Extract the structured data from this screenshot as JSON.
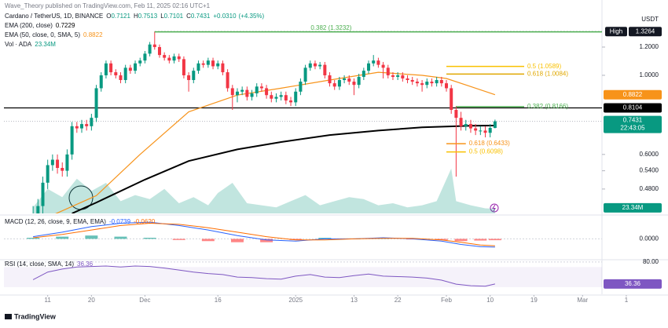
{
  "publisher": "Wave_Theory published on TradingView.com, Feb 11, 2025 02:16 UTC+1",
  "footer": "TradingView",
  "chart_data": [
    {
      "type": "candlestick",
      "title": "Cardano / TetherUS, 1D, BINANCE",
      "quote": [
        {
          "label": "O",
          "value": 0.7121
        },
        {
          "label": "H",
          "value": 0.7513
        },
        {
          "label": "L",
          "value": 0.7101
        },
        {
          "label": "C",
          "value": 0.7431
        }
      ],
      "change": {
        "value": 0.031,
        "label": "+0.0310"
      },
      "change_pct": {
        "value": 4.35,
        "label": "(+4.35%)"
      },
      "unit_label": "USDT",
      "log_scale": true,
      "xlim": [
        -6,
        117
      ],
      "xticks": [
        {
          "value": 3,
          "label": "11"
        },
        {
          "value": 12,
          "label": "20"
        },
        {
          "value": 23,
          "label": "Dec"
        },
        {
          "value": 38,
          "label": "16"
        },
        {
          "value": 54,
          "label": "2025"
        },
        {
          "value": 66,
          "label": "13"
        },
        {
          "value": 75,
          "label": "22"
        },
        {
          "value": 85,
          "label": "Feb"
        },
        {
          "value": 94,
          "label": "10"
        },
        {
          "value": 103,
          "label": "19"
        },
        {
          "value": 113,
          "label": "Mar"
        },
        {
          "value": 122,
          "label": "1"
        }
      ],
      "ylim": [
        0.41,
        1.411
      ],
      "yticks": [
        {
          "value": 1.2,
          "label": "1.2000"
        },
        {
          "value": 1,
          "label": "1.0000"
        },
        {
          "value": 0.6,
          "label": "0.6000"
        },
        {
          "value": 0.54,
          "label": "0.5400"
        },
        {
          "value": 0.48,
          "label": "0.4800"
        }
      ],
      "up_color": "#089981",
      "down_color": "#f23645",
      "open": [
        0.39,
        0.41,
        0.43,
        0.5,
        0.56,
        0.58,
        0.55,
        0.54,
        0.6,
        0.72,
        0.71,
        0.73,
        0.72,
        0.76,
        0.92,
        1.0,
        1.08,
        1.02,
        1.0,
        0.97,
        1.05,
        1.03,
        1.08,
        1.1,
        1.15,
        1.22,
        1.2,
        1.14,
        1.12,
        1.1,
        1.13,
        1.11,
        1.0,
        0.97,
        1.03,
        1.08,
        1.07,
        1.1,
        1.06,
        1.08,
        1.02,
        0.92,
        0.88,
        0.9,
        0.91,
        0.87,
        0.89,
        0.93,
        0.92,
        0.88,
        0.86,
        0.87,
        0.88,
        0.85,
        0.84,
        0.9,
        0.96,
        1.05,
        1.08,
        1.06,
        1.07,
        1.0,
        0.95,
        0.93,
        0.97,
        0.98,
        0.96,
        0.94,
        0.99,
        1.03,
        1.08,
        1.1,
        1.07,
        1.05,
        1.0,
        0.99,
        1.0,
        0.98,
        0.97,
        0.96,
        0.95,
        0.94,
        0.96,
        0.95,
        0.97,
        0.95,
        0.92,
        0.8,
        0.76,
        0.72,
        0.73,
        0.71,
        0.7,
        0.7,
        0.69,
        0.7121
      ],
      "high": [
        0.43,
        0.45,
        0.52,
        0.58,
        0.6,
        0.6,
        0.57,
        0.62,
        0.74,
        0.74,
        0.75,
        0.75,
        0.78,
        0.94,
        1.02,
        1.1,
        1.1,
        1.04,
        1.02,
        1.07,
        1.07,
        1.1,
        1.12,
        1.17,
        1.24,
        1.3264,
        1.22,
        1.16,
        1.14,
        1.15,
        1.15,
        1.13,
        1.02,
        1.05,
        1.1,
        1.1,
        1.12,
        1.12,
        1.1,
        1.1,
        1.04,
        0.94,
        0.92,
        0.93,
        0.93,
        0.91,
        0.95,
        0.95,
        0.94,
        0.9,
        0.89,
        0.9,
        0.9,
        0.87,
        0.92,
        0.98,
        1.07,
        1.1,
        1.1,
        1.09,
        1.09,
        1.02,
        0.97,
        0.99,
        1.0,
        1.0,
        0.98,
        1.01,
        1.05,
        1.1,
        1.14,
        1.12,
        1.09,
        1.07,
        1.02,
        1.02,
        1.02,
        1.0,
        0.99,
        0.98,
        0.97,
        0.98,
        0.98,
        0.99,
        0.99,
        0.97,
        0.94,
        0.82,
        0.79,
        0.75,
        0.75,
        0.73,
        0.72,
        0.72,
        0.73,
        0.7513
      ],
      "low": [
        0.37,
        0.39,
        0.41,
        0.48,
        0.54,
        0.53,
        0.52,
        0.52,
        0.58,
        0.69,
        0.69,
        0.7,
        0.7,
        0.74,
        0.9,
        0.98,
        1.0,
        0.98,
        0.95,
        0.95,
        1.01,
        1.01,
        1.06,
        1.08,
        1.13,
        1.18,
        1.12,
        1.1,
        1.08,
        1.08,
        1.09,
        0.98,
        0.9,
        0.95,
        1.01,
        1.05,
        1.05,
        1.04,
        1.04,
        1.0,
        0.9,
        0.8,
        0.84,
        0.88,
        0.85,
        0.85,
        0.87,
        0.9,
        0.86,
        0.84,
        0.84,
        0.85,
        0.83,
        0.82,
        0.82,
        0.88,
        0.94,
        1.03,
        1.04,
        1.04,
        0.98,
        0.93,
        0.91,
        0.91,
        0.95,
        0.94,
        0.88,
        0.92,
        0.97,
        1.01,
        1.06,
        1.05,
        0.98,
        0.98,
        0.97,
        0.97,
        0.96,
        0.95,
        0.94,
        0.93,
        0.9,
        0.92,
        0.93,
        0.93,
        0.93,
        0.9,
        0.78,
        0.52,
        0.7,
        0.7,
        0.69,
        0.68,
        0.68,
        0.67,
        0.67,
        0.7101
      ],
      "close": [
        0.41,
        0.43,
        0.5,
        0.56,
        0.58,
        0.55,
        0.54,
        0.6,
        0.72,
        0.71,
        0.73,
        0.72,
        0.76,
        0.92,
        1.0,
        1.08,
        1.02,
        1.0,
        0.97,
        1.05,
        1.03,
        1.08,
        1.1,
        1.15,
        1.22,
        1.2,
        1.14,
        1.12,
        1.1,
        1.13,
        1.11,
        1.0,
        0.97,
        1.03,
        1.08,
        1.07,
        1.1,
        1.06,
        1.08,
        1.02,
        0.92,
        0.88,
        0.9,
        0.91,
        0.87,
        0.89,
        0.93,
        0.92,
        0.88,
        0.86,
        0.87,
        0.88,
        0.85,
        0.84,
        0.9,
        0.96,
        1.05,
        1.08,
        1.06,
        1.07,
        1.0,
        0.95,
        0.93,
        0.97,
        0.98,
        0.96,
        0.94,
        0.99,
        1.03,
        1.08,
        1.1,
        1.07,
        1.05,
        1.0,
        0.99,
        1.0,
        0.98,
        0.97,
        0.96,
        0.95,
        0.94,
        0.96,
        0.95,
        0.97,
        0.95,
        0.92,
        0.8,
        0.76,
        0.72,
        0.73,
        0.71,
        0.7,
        0.7,
        0.69,
        0.7121,
        0.7431
      ],
      "countdown": "22:43:05",
      "high_marker": {
        "label": "High",
        "value": 1.3264
      },
      "level": {
        "value": 0.8104,
        "color": "#000000"
      },
      "overlays": [
        {
          "name": "EMA (200, close)",
          "color": "#000000",
          "x": [
            8,
            13,
            23,
            32,
            42,
            51,
            61,
            71,
            80,
            90,
            95
          ],
          "values": [
            0.41,
            0.44,
            0.51,
            0.575,
            0.62,
            0.65,
            0.68,
            0.7,
            0.715,
            0.722,
            0.7229
          ]
        },
        {
          "name": "EMA (50, close, 0, SMA, 5)",
          "color": "#f7931a",
          "x": [
            3,
            13,
            22,
            32,
            42,
            51,
            61,
            71,
            80,
            85,
            90,
            95
          ],
          "values": [
            0.4,
            0.46,
            0.6,
            0.79,
            0.88,
            0.92,
            0.97,
            1.02,
            1.0,
            0.98,
            0.93,
            0.8822
          ]
        }
      ],
      "fibs": [
        {
          "label": "0.382 (1.3232)",
          "value": 1.3232,
          "x": [
            25,
            117
          ],
          "color": "#4caf50"
        },
        {
          "label": "0.5 (1.0589)",
          "value": 1.0589,
          "x": [
            85,
            101
          ],
          "color": "#f9c000"
        },
        {
          "label": "0.618 (1.0084)",
          "value": 1.0084,
          "x": [
            85,
            101
          ],
          "color": "#e0a800"
        },
        {
          "label": "0.382 (0.8166)",
          "value": 0.8166,
          "x": [
            87,
            101
          ],
          "color": "#4caf50"
        },
        {
          "label": "0.618 (0.6433)",
          "value": 0.6433,
          "x": [
            85,
            89
          ],
          "color": "#f7931a"
        },
        {
          "label": "0.5 (0.6098)",
          "value": 0.6098,
          "x": [
            85,
            89
          ],
          "color": "#f9c000"
        }
      ],
      "volume": {
        "name": "Vol · ADA",
        "value_label": "23.34M",
        "color": "#089981",
        "ylim": [
          0,
          300
        ],
        "x": [
          0,
          3,
          6,
          9,
          12,
          15,
          18,
          21,
          24,
          27,
          30,
          33,
          36,
          38,
          41,
          44,
          47,
          50,
          53,
          56,
          59,
          62,
          65,
          68,
          71,
          74,
          77,
          80,
          83,
          86,
          87,
          90,
          93,
          95
        ],
        "values": [
          30,
          120,
          80,
          170,
          110,
          150,
          60,
          90,
          70,
          120,
          50,
          80,
          40,
          100,
          150,
          50,
          40,
          30,
          60,
          90,
          40,
          60,
          80,
          70,
          40,
          50,
          30,
          40,
          60,
          220,
          60,
          40,
          25,
          23.34
        ]
      }
    },
    {
      "type": "line",
      "title": "MACD (12, 26, close, 9, EMA, EMA)",
      "ylim": [
        -0.18,
        0.2
      ],
      "yticks": [
        {
          "value": 0,
          "label": "0.0000"
        }
      ],
      "series": [
        {
          "name": "MACD",
          "color": "#2962ff",
          "legend_value": {
            "value": -0.0739,
            "label": "-0.0739"
          },
          "x": [
            0,
            6,
            12,
            18,
            24,
            30,
            36,
            42,
            48,
            54,
            60,
            66,
            72,
            78,
            84,
            88,
            92,
            95
          ],
          "values": [
            0.02,
            0.06,
            0.11,
            0.14,
            0.15,
            0.12,
            0.08,
            0.03,
            -0.01,
            -0.02,
            0.0,
            0.0,
            0.01,
            0.0,
            -0.02,
            -0.05,
            -0.07,
            -0.0739
          ]
        },
        {
          "name": "Signal",
          "color": "#ff6d00",
          "legend_value": {
            "value": -0.062,
            "label": "-0.0620"
          },
          "x": [
            0,
            6,
            12,
            18,
            24,
            30,
            36,
            42,
            48,
            54,
            60,
            66,
            72,
            78,
            84,
            88,
            92,
            95
          ],
          "values": [
            0.01,
            0.04,
            0.08,
            0.12,
            0.14,
            0.13,
            0.1,
            0.06,
            0.02,
            -0.01,
            -0.01,
            0.0,
            0.005,
            0.005,
            -0.01,
            -0.03,
            -0.055,
            -0.062
          ]
        }
      ],
      "histogram": {
        "up_color": "#26a69a",
        "down_color": "#ff5252",
        "x": [
          0,
          6,
          12,
          18,
          24,
          30,
          36,
          42,
          48,
          54,
          60,
          66,
          72,
          78,
          84,
          88,
          92,
          95
        ],
        "values": [
          0.01,
          0.02,
          0.03,
          0.02,
          0.01,
          -0.01,
          -0.02,
          -0.03,
          -0.03,
          -0.01,
          0.01,
          0.0,
          0.005,
          -0.005,
          -0.01,
          -0.02,
          -0.015,
          -0.0119
        ]
      }
    },
    {
      "type": "line",
      "title": "RSI (14, close, SMA, 14)",
      "ylim": [
        16,
        86
      ],
      "yticks": [
        {
          "value": 80,
          "label": "80.00"
        }
      ],
      "band": [
        30,
        70
      ],
      "series": [
        {
          "name": "RSI",
          "color": "#7e57c2",
          "x": [
            0,
            3,
            6,
            9,
            12,
            15,
            18,
            21,
            24,
            27,
            30,
            33,
            36,
            39,
            42,
            45,
            48,
            51,
            54,
            57,
            60,
            63,
            66,
            69,
            72,
            75,
            78,
            81,
            84,
            87,
            90,
            93,
            95
          ],
          "values": [
            45,
            60,
            66,
            70,
            71,
            72,
            70,
            72,
            71,
            68,
            64,
            60,
            57,
            55,
            50,
            49,
            47,
            46,
            52,
            55,
            50,
            49,
            53,
            56,
            52,
            51,
            50,
            48,
            44,
            36,
            33,
            32,
            36.36
          ]
        }
      ]
    }
  ]
}
